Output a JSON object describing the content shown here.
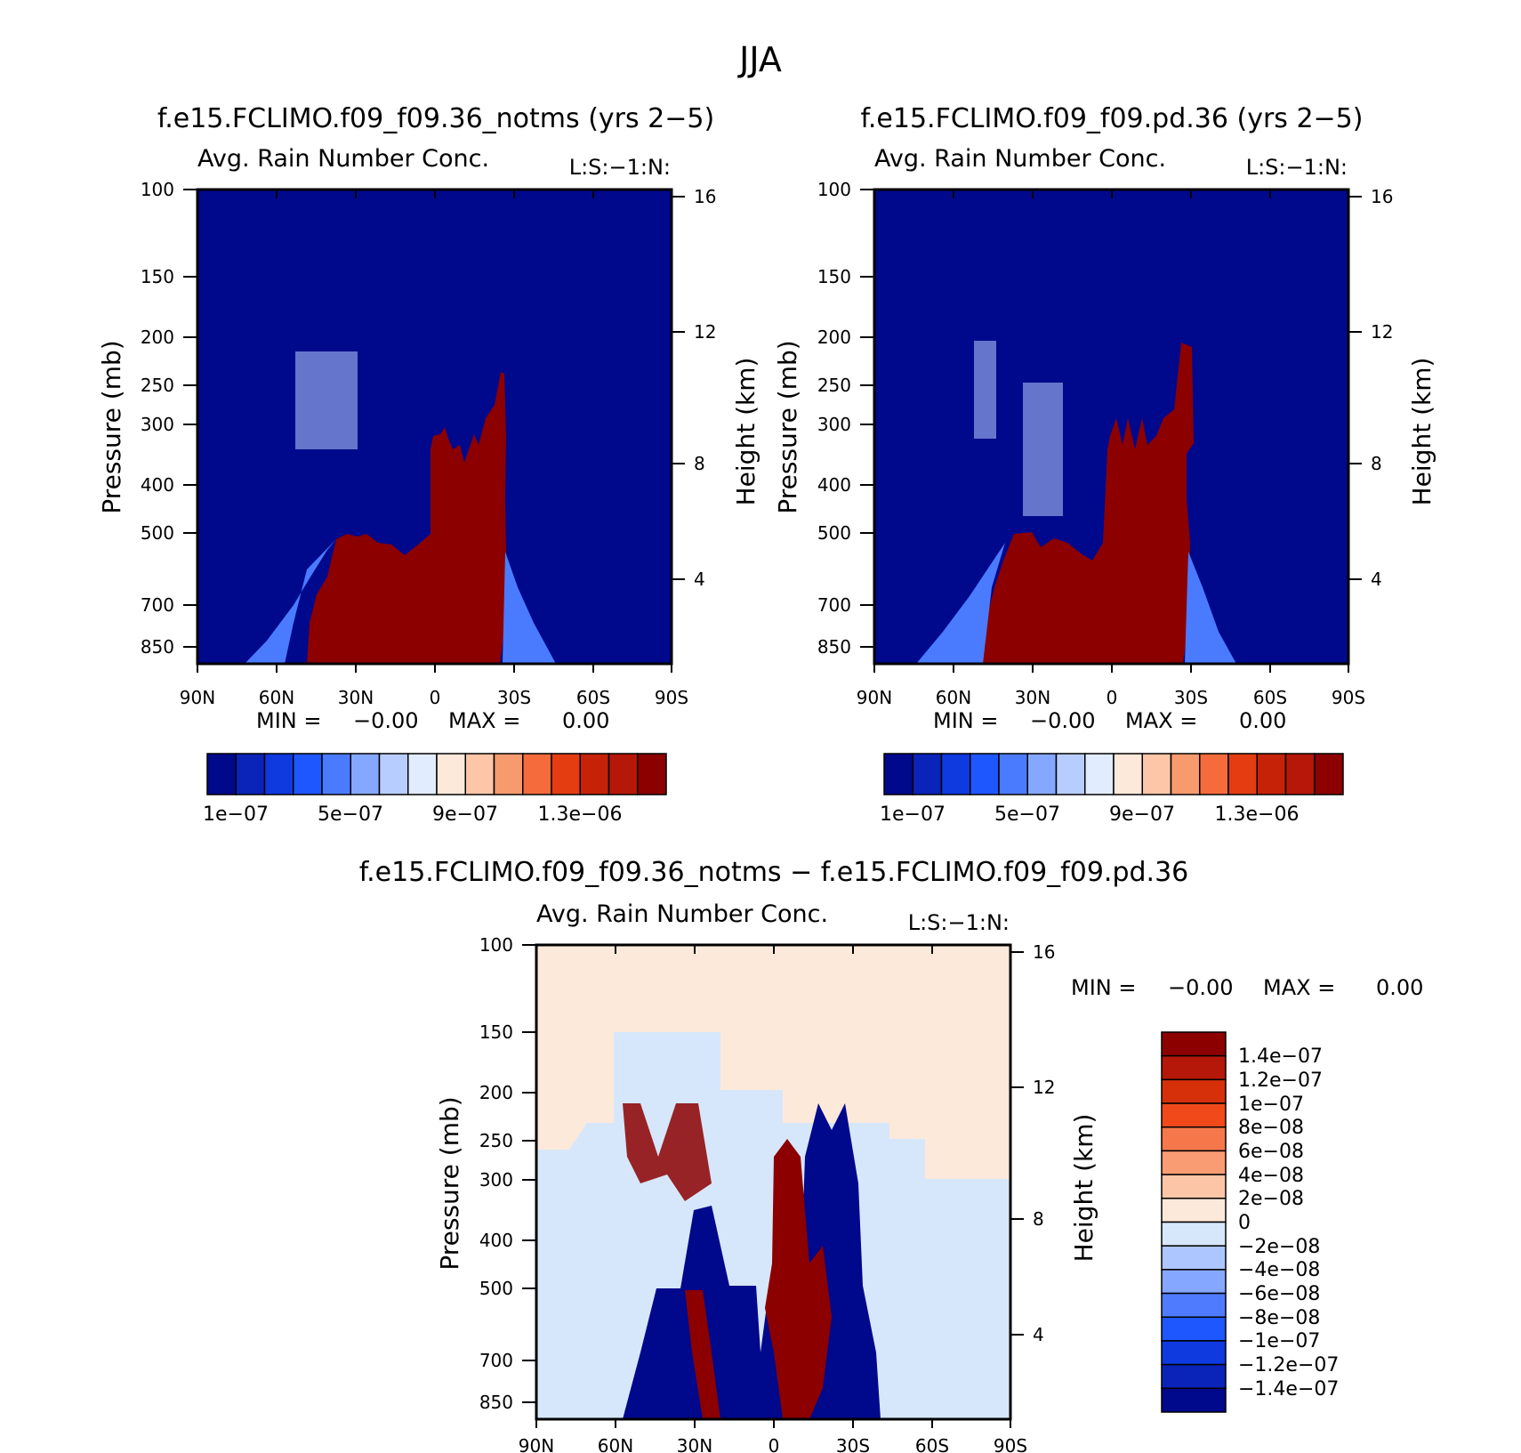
{
  "figure": {
    "title": "JJA"
  },
  "chart_data": [
    {
      "type": "heatmap",
      "panel": "top-left",
      "case_title": "f.e15.FCLIMO.f09_f09.36_notms (yrs 2−5)",
      "subtitle_left": "Avg. Rain Number Conc.",
      "subtitle_right": "L:S:−1:N:",
      "ylabel": "Pressure (mb)",
      "ylabel_right": "Height (km)",
      "x_ticks": [
        "90N",
        "60N",
        "30N",
        "0",
        "30S",
        "60S",
        "90S"
      ],
      "y_ticks": [
        "100",
        "150",
        "200",
        "250",
        "300",
        "400",
        "500",
        "700",
        "850"
      ],
      "y_ticks_right": [
        "16",
        "12",
        "8",
        "4"
      ],
      "ylim": [
        100,
        900
      ],
      "stats": {
        "min_label": "MIN =",
        "min_value": "−0.00",
        "max_label": "MAX =",
        "max_value": "0.00"
      },
      "colorbar_labels": [
        "1e−07",
        "5e−07",
        "9e−07",
        "1.3e−06"
      ],
      "colorbar_colors": [
        "#00088c",
        "#0a23b8",
        "#0f3ae0",
        "#1f57ff",
        "#4a7bff",
        "#86a7ff",
        "#b8cdff",
        "#e1ecff",
        "#fde9d9",
        "#fdc6a8",
        "#f79a6e",
        "#f56b3c",
        "#e43d12",
        "#c52208",
        "#b51808",
        "#8c0000"
      ],
      "background_color": "#00098c",
      "dominant_color": "#8c0000"
    },
    {
      "type": "heatmap",
      "panel": "top-right",
      "case_title": "f.e15.FCLIMO.f09_f09.pd.36 (yrs 2−5)",
      "subtitle_left": "Avg. Rain Number Conc.",
      "subtitle_right": "L:S:−1:N:",
      "ylabel": "Pressure (mb)",
      "ylabel_right": "Height (km)",
      "x_ticks": [
        "90N",
        "60N",
        "30N",
        "0",
        "30S",
        "60S",
        "90S"
      ],
      "y_ticks": [
        "100",
        "150",
        "200",
        "250",
        "300",
        "400",
        "500",
        "700",
        "850"
      ],
      "y_ticks_right": [
        "16",
        "12",
        "8",
        "4"
      ],
      "ylim": [
        100,
        900
      ],
      "stats": {
        "min_label": "MIN =",
        "min_value": "−0.00",
        "max_label": "MAX =",
        "max_value": "0.00"
      },
      "colorbar_labels": [
        "1e−07",
        "5e−07",
        "9e−07",
        "1.3e−06"
      ],
      "colorbar_colors": [
        "#00088c",
        "#0a23b8",
        "#0f3ae0",
        "#1f57ff",
        "#4a7bff",
        "#86a7ff",
        "#b8cdff",
        "#e1ecff",
        "#fde9d9",
        "#fdc6a8",
        "#f79a6e",
        "#f56b3c",
        "#e43d12",
        "#c52208",
        "#b51808",
        "#8c0000"
      ],
      "background_color": "#00098c",
      "dominant_color": "#8c0000"
    },
    {
      "type": "heatmap",
      "panel": "bottom-difference",
      "case_title": "f.e15.FCLIMO.f09_f09.36_notms − f.e15.FCLIMO.f09_f09.pd.36",
      "subtitle_left": "Avg. Rain Number Conc.",
      "subtitle_right": "L:S:−1:N:",
      "ylabel": "Pressure (mb)",
      "ylabel_right": "Height (km)",
      "x_ticks": [
        "90N",
        "60N",
        "30N",
        "0",
        "30S",
        "60S",
        "90S"
      ],
      "y_ticks": [
        "100",
        "150",
        "200",
        "250",
        "300",
        "400",
        "500",
        "700",
        "850"
      ],
      "y_ticks_right": [
        "16",
        "12",
        "8",
        "4"
      ],
      "ylim": [
        100,
        900
      ],
      "stats": {
        "min_label": "MIN =",
        "min_value": "−0.00",
        "max_label": "MAX =",
        "max_value": "0.00"
      },
      "colorbar_labels": [
        "1.4e−07",
        "1.2e−07",
        "1e−07",
        "8e−08",
        "6e−08",
        "4e−08",
        "2e−08",
        "0",
        "−2e−08",
        "−4e−08",
        "−6e−08",
        "−8e−08",
        "−1e−07",
        "−1.2e−07",
        "−1.4e−07"
      ],
      "colorbar_colors": [
        "#8c0000",
        "#b51808",
        "#d6300b",
        "#f1491a",
        "#f6784a",
        "#f99c73",
        "#fcc6a6",
        "#fde9d9",
        "#d6e7fb",
        "#aec6ff",
        "#86a7ff",
        "#4f7cff",
        "#1f57ff",
        "#0f3ae0",
        "#0a23b8",
        "#00088c"
      ],
      "background_color": "#fde9d9",
      "neutral_negative_color": "#d6e7fb"
    }
  ]
}
